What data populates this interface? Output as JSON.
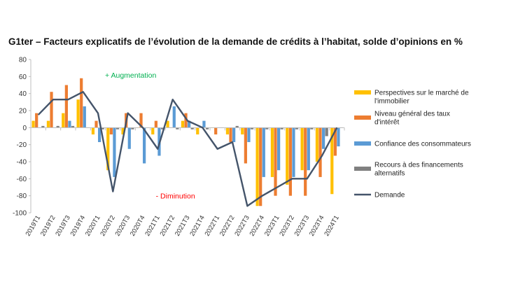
{
  "chart_data": {
    "type": "bar",
    "title": "G1ter – Facteurs explicatifs de l’évolution de la demande de crédits à l’habitat, solde d’opinions en %",
    "ylim": [
      -100,
      80
    ],
    "yticks": [
      -100,
      -80,
      -60,
      -40,
      -20,
      0,
      20,
      40,
      60,
      80
    ],
    "categories": [
      "2019T1",
      "2019T2",
      "2019T3",
      "2019T4",
      "2020T1",
      "2020T2",
      "2020T3",
      "2020T4",
      "2021T1",
      "2021T2",
      "2021T3",
      "2021T4",
      "2022T1",
      "2022T2",
      "2022T3",
      "2022T4",
      "2023T1",
      "2023T2",
      "2023T3",
      "2023T4",
      "2024T1"
    ],
    "series": [
      {
        "name": "Perspectives sur le marché de l'immobilier",
        "color": "#FFC000",
        "values": [
          8,
          8,
          17,
          33,
          -8,
          -50,
          -8,
          0,
          -8,
          8,
          8,
          -8,
          0,
          -8,
          -8,
          -92,
          -58,
          -67,
          -50,
          -40,
          -78
        ]
      },
      {
        "name": "Niveau général des taux d'intérêt",
        "color": "#ED7D31",
        "values": [
          17,
          42,
          50,
          58,
          8,
          -8,
          17,
          17,
          8,
          0,
          17,
          0,
          -8,
          -17,
          -42,
          -92,
          -80,
          -80,
          -80,
          -58,
          -33
        ]
      },
      {
        "name": "Confiance des consommateurs",
        "color": "#5B9BD5",
        "values": [
          0,
          0,
          8,
          25,
          -17,
          -58,
          -25,
          -42,
          -33,
          25,
          8,
          8,
          0,
          -17,
          -17,
          -58,
          -50,
          -58,
          -50,
          -25,
          -22
        ]
      },
      {
        "name": "Recours à des financements alternatifs",
        "color": "#808080",
        "values": [
          2,
          2,
          2,
          0,
          -2,
          -2,
          -2,
          0,
          -2,
          -2,
          -2,
          -2,
          0,
          2,
          -2,
          -2,
          -2,
          -2,
          -2,
          -10,
          0
        ]
      }
    ],
    "line": {
      "name": "Demande",
      "color": "#44546A",
      "values": [
        15,
        33,
        33,
        42,
        17,
        -75,
        17,
        0,
        -25,
        33,
        8,
        0,
        -25,
        -17,
        -92,
        -80,
        -70,
        -60,
        -60,
        -33,
        0
      ]
    },
    "annotations": [
      {
        "text": "+ Augmentation",
        "color": "#00B050",
        "at_value": 62,
        "near_category": "2020T3"
      },
      {
        "text": "- Diminution",
        "color": "#FF0000",
        "at_value": -80,
        "near_category": "2021T2"
      }
    ]
  }
}
